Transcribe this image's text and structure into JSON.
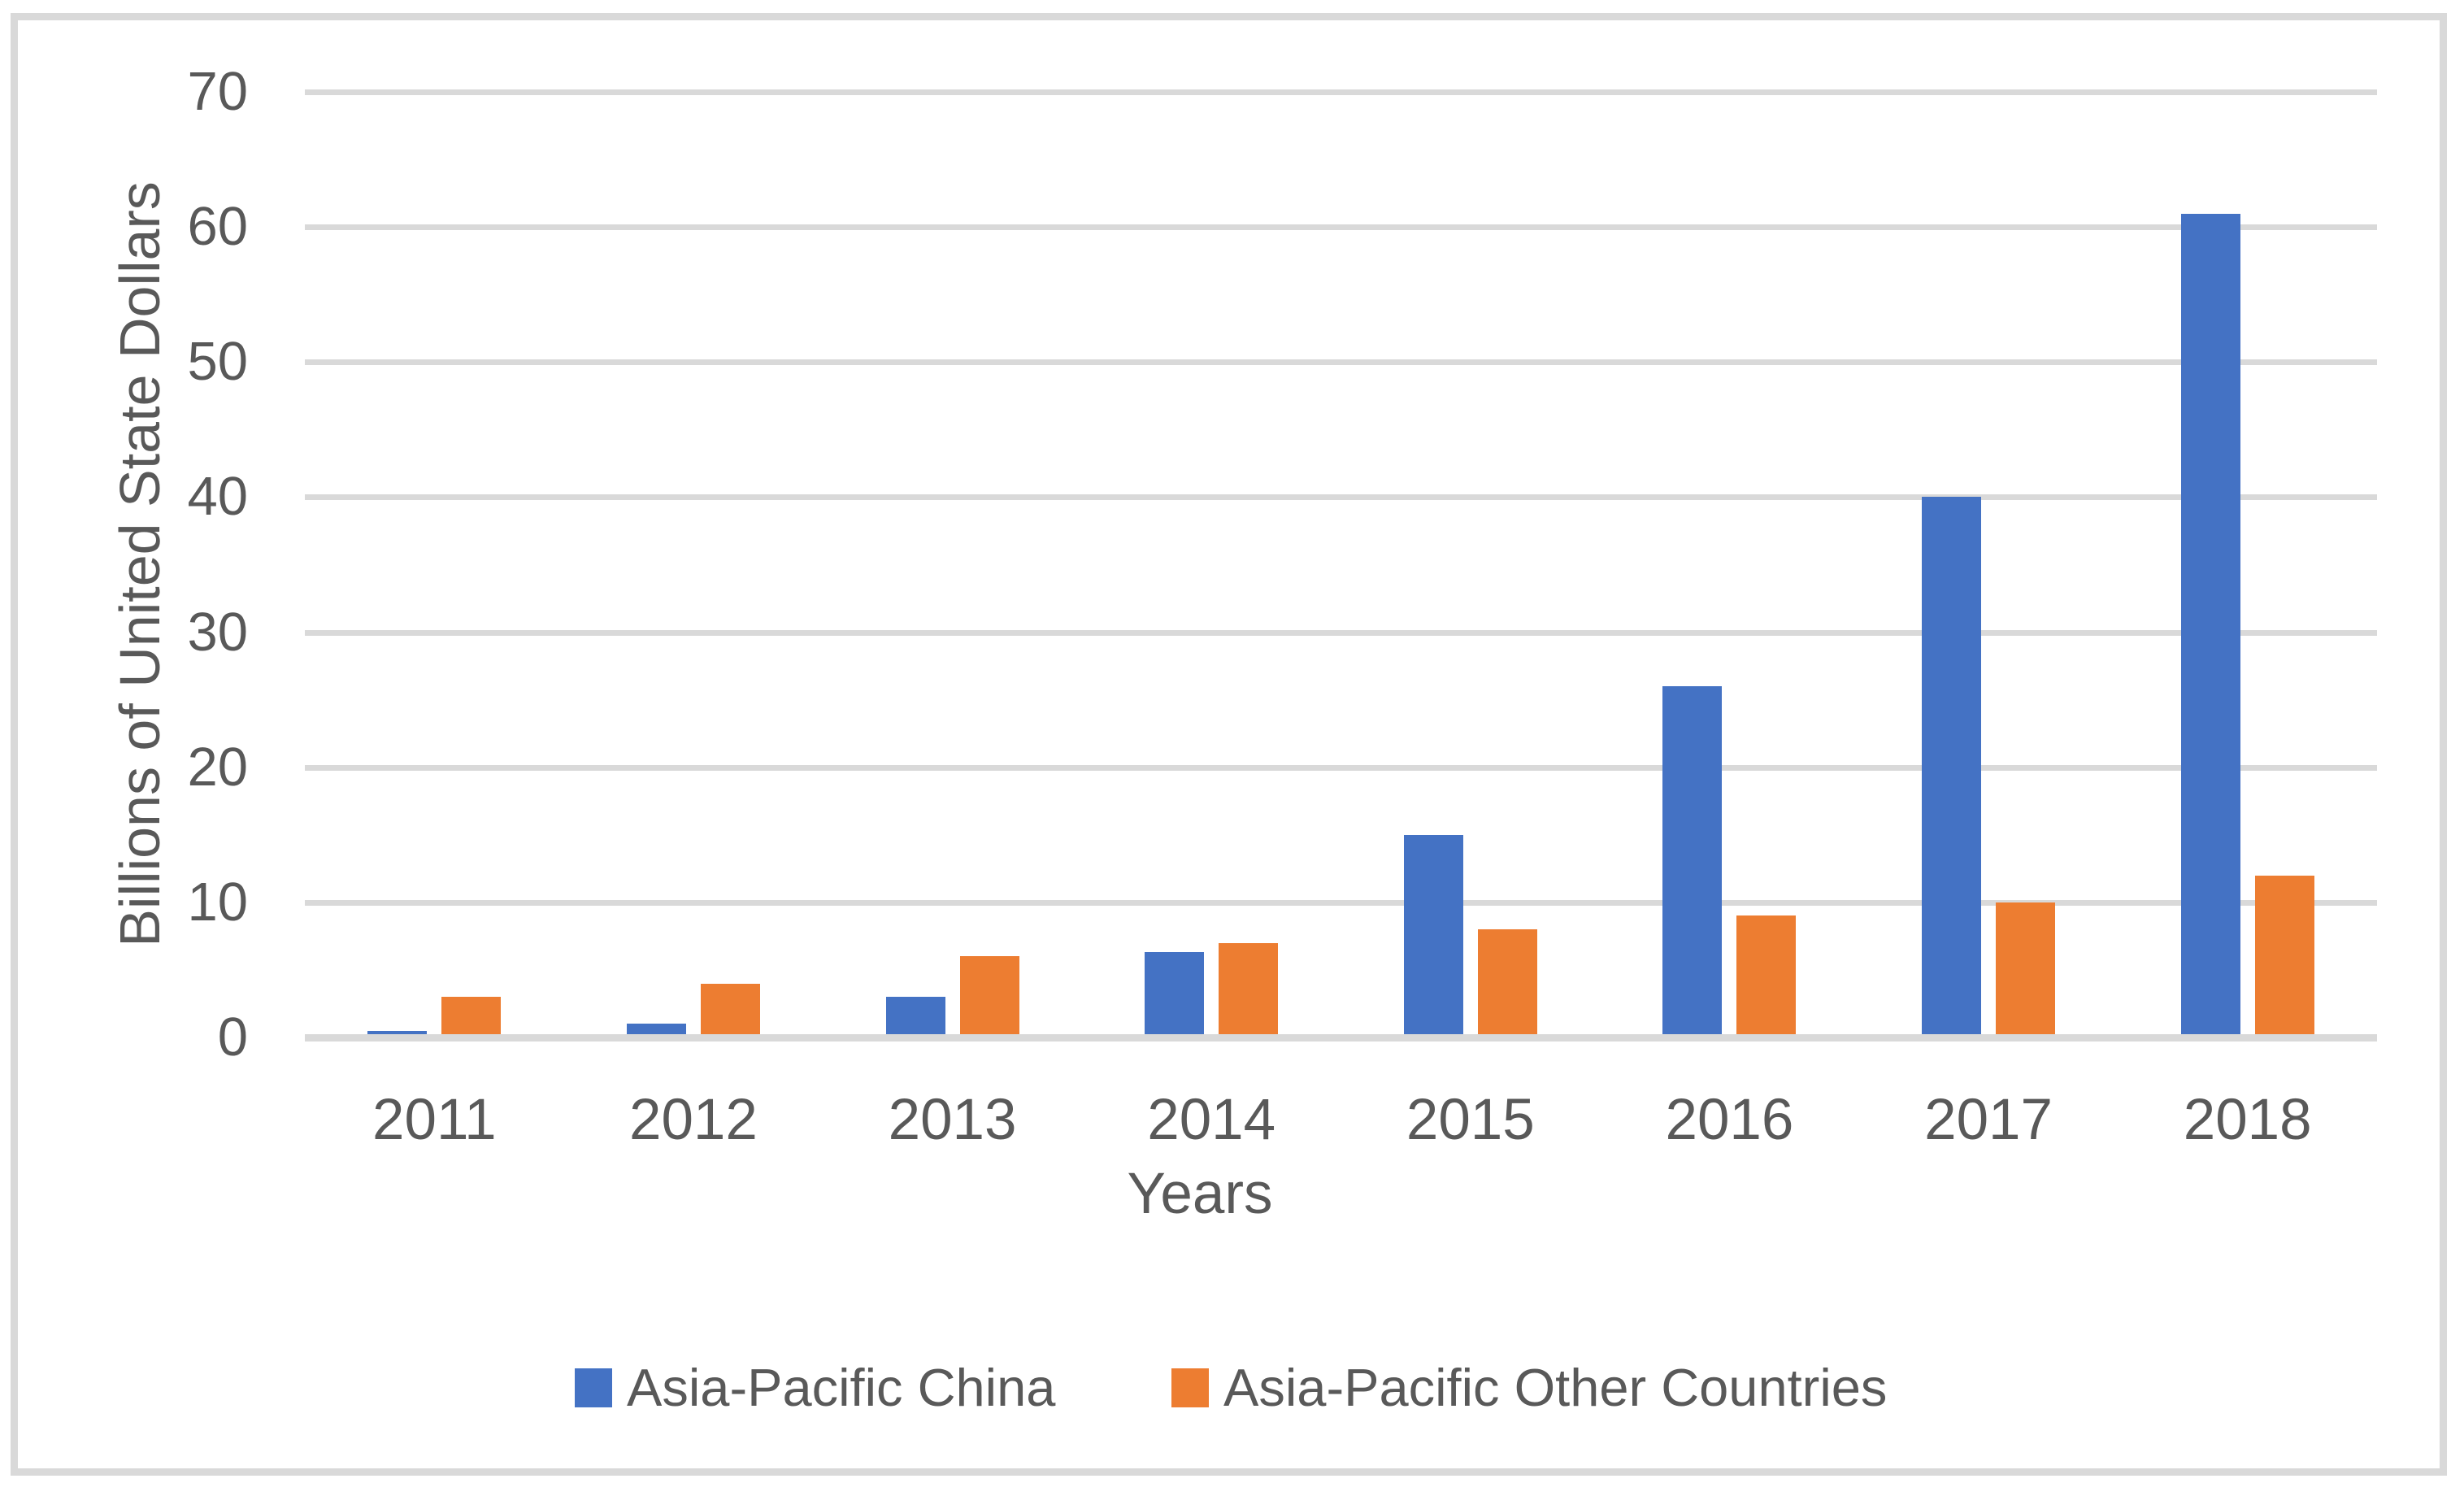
{
  "figure": {
    "background": "#FFFFFF",
    "border_color": "#D9D9D9"
  },
  "chart_data": {
    "type": "bar",
    "title": "",
    "xlabel": "Years",
    "ylabel": "Billions of United State Dollars",
    "categories": [
      "2011",
      "2012",
      "2013",
      "2014",
      "2015",
      "2016",
      "2017",
      "2018"
    ],
    "series": [
      {
        "name": "Asia-Pacific China",
        "color": "#4472C4",
        "values": [
          0.5,
          1,
          3,
          6.3,
          15,
          26,
          40,
          61
        ]
      },
      {
        "name": "Asia-Pacific Other Countries",
        "color": "#ED7D31",
        "values": [
          3,
          4,
          6,
          7,
          8,
          9,
          10,
          12
        ]
      }
    ],
    "ylim": [
      0,
      70
    ],
    "yticks": [
      0,
      10,
      20,
      30,
      40,
      50,
      60,
      70
    ],
    "grid": true,
    "legend_position": "bottom",
    "text_color": "#595959",
    "grid_color": "#D9D9D9"
  }
}
